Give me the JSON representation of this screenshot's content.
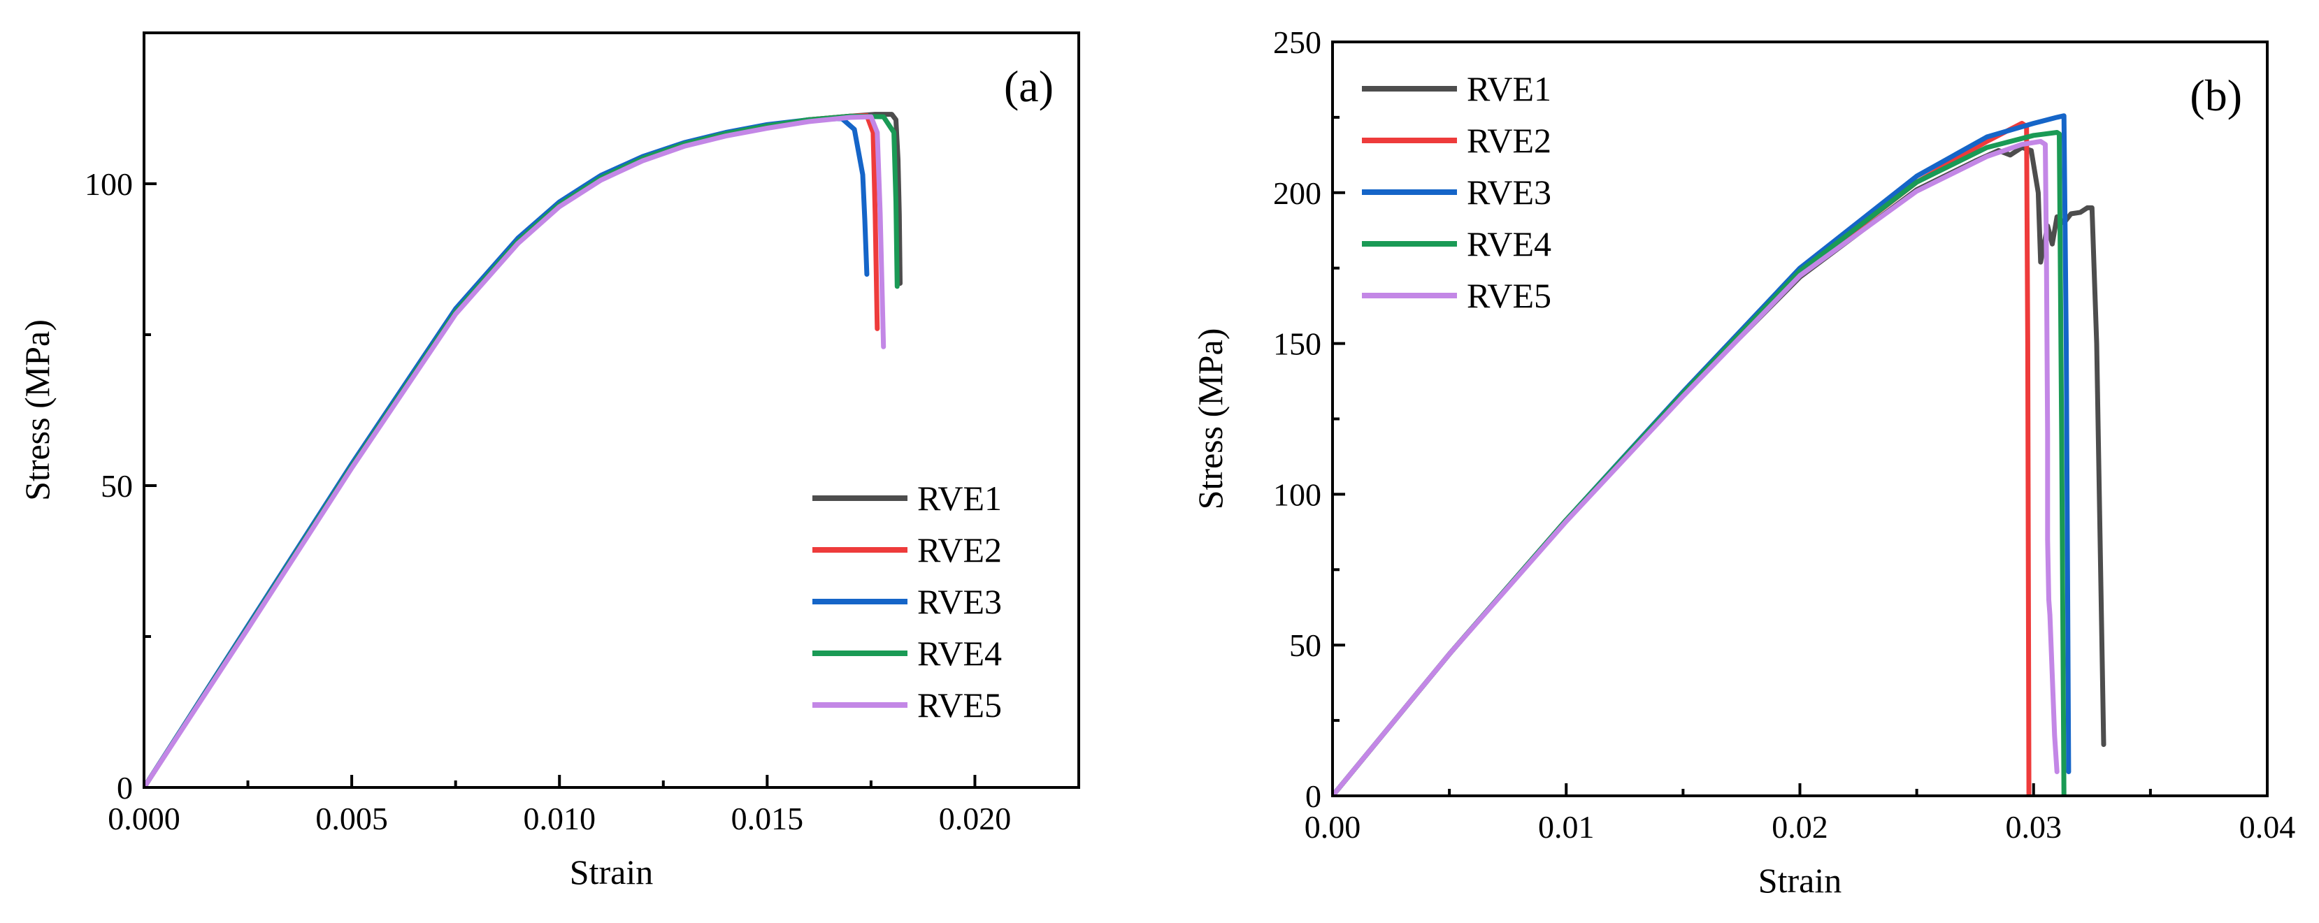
{
  "chart_data": [
    {
      "type": "line",
      "panel_label": "(a)",
      "xlabel": "Strain",
      "ylabel": "Stress (MPa)",
      "xlim": [
        0,
        0.0225
      ],
      "ylim": [
        0,
        125
      ],
      "xticks": [
        0,
        0.005,
        0.01,
        0.015,
        0.02
      ],
      "xtick_labels": [
        "0.000",
        "0.005",
        "0.010",
        "0.015",
        "0.020"
      ],
      "yticks": [
        0,
        50,
        100
      ],
      "ytick_labels": [
        "0",
        "50",
        "100"
      ],
      "legend_position": "bottom-right",
      "series": [
        {
          "name": "RVE1",
          "color": "#4d4d4d",
          "points": [
            [
              0,
              0
            ],
            [
              0.0025,
              26.5
            ],
            [
              0.005,
              53.2
            ],
            [
              0.0075,
              78.8
            ],
            [
              0.009,
              90.5
            ],
            [
              0.01,
              96.6
            ],
            [
              0.011,
              101.0
            ],
            [
              0.012,
              104.2
            ],
            [
              0.013,
              106.6
            ],
            [
              0.014,
              108.3
            ],
            [
              0.015,
              109.6
            ],
            [
              0.016,
              110.6
            ],
            [
              0.017,
              111.2
            ],
            [
              0.0176,
              111.5
            ],
            [
              0.018,
              111.5
            ],
            [
              0.0181,
              110.6
            ],
            [
              0.01815,
              104.0
            ],
            [
              0.01818,
              95.0
            ],
            [
              0.0182,
              83.5
            ]
          ]
        },
        {
          "name": "RVE2",
          "color": "#ee3b3b",
          "points": [
            [
              0,
              0
            ],
            [
              0.0025,
              26.5
            ],
            [
              0.005,
              53.2
            ],
            [
              0.0075,
              78.8
            ],
            [
              0.009,
              90.5
            ],
            [
              0.01,
              96.6
            ],
            [
              0.011,
              101.0
            ],
            [
              0.012,
              104.2
            ],
            [
              0.013,
              106.6
            ],
            [
              0.014,
              108.3
            ],
            [
              0.015,
              109.6
            ],
            [
              0.016,
              110.6
            ],
            [
              0.017,
              111.2
            ],
            [
              0.0174,
              111.3
            ],
            [
              0.01755,
              108.5
            ],
            [
              0.0176,
              95.0
            ],
            [
              0.01765,
              76.0
            ]
          ]
        },
        {
          "name": "RVE3",
          "color": "#1565c8",
          "points": [
            [
              0,
              0
            ],
            [
              0.0025,
              26.8
            ],
            [
              0.005,
              53.6
            ],
            [
              0.0075,
              79.3
            ],
            [
              0.009,
              91.0
            ],
            [
              0.01,
              97.0
            ],
            [
              0.011,
              101.4
            ],
            [
              0.012,
              104.5
            ],
            [
              0.013,
              106.8
            ],
            [
              0.014,
              108.5
            ],
            [
              0.015,
              109.8
            ],
            [
              0.016,
              110.6
            ],
            [
              0.0168,
              110.8
            ],
            [
              0.0171,
              109.0
            ],
            [
              0.0173,
              101.5
            ],
            [
              0.01735,
              94.0
            ],
            [
              0.0174,
              85.0
            ]
          ]
        },
        {
          "name": "RVE4",
          "color": "#1a9a55",
          "points": [
            [
              0,
              0
            ],
            [
              0.0025,
              26.5
            ],
            [
              0.005,
              53.2
            ],
            [
              0.0075,
              78.8
            ],
            [
              0.009,
              90.5
            ],
            [
              0.01,
              96.6
            ],
            [
              0.011,
              101.0
            ],
            [
              0.012,
              104.2
            ],
            [
              0.013,
              106.6
            ],
            [
              0.014,
              108.3
            ],
            [
              0.015,
              109.6
            ],
            [
              0.016,
              110.6
            ],
            [
              0.017,
              111.2
            ],
            [
              0.0178,
              111.1
            ],
            [
              0.01805,
              108.5
            ],
            [
              0.0181,
              97.0
            ],
            [
              0.01813,
              83.0
            ]
          ]
        },
        {
          "name": "RVE5",
          "color": "#c387e6",
          "points": [
            [
              0,
              0
            ],
            [
              0.0025,
              26.3
            ],
            [
              0.005,
              52.9
            ],
            [
              0.0075,
              78.4
            ],
            [
              0.009,
              90.1
            ],
            [
              0.01,
              96.2
            ],
            [
              0.011,
              100.6
            ],
            [
              0.012,
              103.8
            ],
            [
              0.013,
              106.2
            ],
            [
              0.014,
              107.9
            ],
            [
              0.015,
              109.2
            ],
            [
              0.016,
              110.3
            ],
            [
              0.017,
              111.0
            ],
            [
              0.0175,
              111.1
            ],
            [
              0.01765,
              108.5
            ],
            [
              0.01772,
              95.0
            ],
            [
              0.0178,
              73.0
            ]
          ]
        }
      ]
    },
    {
      "type": "line",
      "panel_label": "(b)",
      "xlabel": "Strain",
      "ylabel": "Stress (MPa)",
      "xlim": [
        0,
        0.04
      ],
      "ylim": [
        0,
        250
      ],
      "xticks": [
        0,
        0.01,
        0.02,
        0.03,
        0.04
      ],
      "xtick_labels": [
        "0.00",
        "0.01",
        "0.02",
        "0.03",
        "0.04"
      ],
      "yticks": [
        0,
        50,
        100,
        150,
        200,
        250
      ],
      "ytick_labels": [
        "0",
        "50",
        "100",
        "150",
        "200",
        "250"
      ],
      "legend_position": "top-left",
      "series": [
        {
          "name": "RVE1",
          "color": "#4d4d4d",
          "points": [
            [
              0,
              0
            ],
            [
              0.005,
              47.0
            ],
            [
              0.01,
              91.5
            ],
            [
              0.015,
              133.0
            ],
            [
              0.02,
              172.0
            ],
            [
              0.025,
              201.0
            ],
            [
              0.0275,
              210.5
            ],
            [
              0.0285,
              214.0
            ],
            [
              0.029,
              212.5
            ],
            [
              0.0295,
              215.0
            ],
            [
              0.0299,
              214.0
            ],
            [
              0.0302,
              200.0
            ],
            [
              0.0303,
              177.0
            ],
            [
              0.0306,
              189.0
            ],
            [
              0.0308,
              183.0
            ],
            [
              0.031,
              192.0
            ],
            [
              0.0313,
              190.0
            ],
            [
              0.0316,
              193.0
            ],
            [
              0.032,
              193.5
            ],
            [
              0.0323,
              195.0
            ],
            [
              0.0325,
              195.0
            ],
            [
              0.0327,
              150.0
            ],
            [
              0.033,
              17.0
            ]
          ]
        },
        {
          "name": "RVE2",
          "color": "#ee3b3b",
          "points": [
            [
              0,
              0
            ],
            [
              0.005,
              47.0
            ],
            [
              0.01,
              91.5
            ],
            [
              0.015,
              133.5
            ],
            [
              0.02,
              173.5
            ],
            [
              0.025,
              203.5
            ],
            [
              0.028,
              217.0
            ],
            [
              0.0295,
              223.0
            ],
            [
              0.0297,
              222.0
            ],
            [
              0.02975,
              150.0
            ],
            [
              0.0298,
              0.0
            ]
          ]
        },
        {
          "name": "RVE3",
          "color": "#1565c8",
          "points": [
            [
              0,
              0
            ],
            [
              0.005,
              47.0
            ],
            [
              0.01,
              91.5
            ],
            [
              0.015,
              134.0
            ],
            [
              0.02,
              175.0
            ],
            [
              0.025,
              205.5
            ],
            [
              0.028,
              218.5
            ],
            [
              0.03,
              223.0
            ],
            [
              0.031,
              225.0
            ],
            [
              0.0313,
              225.5
            ],
            [
              0.0314,
              150.0
            ],
            [
              0.0315,
              8.0
            ]
          ]
        },
        {
          "name": "RVE4",
          "color": "#1a9a55",
          "points": [
            [
              0,
              0
            ],
            [
              0.005,
              47.0
            ],
            [
              0.01,
              91.5
            ],
            [
              0.015,
              133.5
            ],
            [
              0.02,
              174.0
            ],
            [
              0.025,
              203.5
            ],
            [
              0.028,
              215.0
            ],
            [
              0.03,
              219.0
            ],
            [
              0.031,
              220.0
            ],
            [
              0.0311,
              219.5
            ],
            [
              0.0312,
              120.0
            ],
            [
              0.0313,
              0.0
            ]
          ]
        },
        {
          "name": "RVE5",
          "color": "#c387e6",
          "points": [
            [
              0,
              0
            ],
            [
              0.005,
              47.0
            ],
            [
              0.01,
              91.0
            ],
            [
              0.015,
              132.5
            ],
            [
              0.02,
              172.5
            ],
            [
              0.025,
              200.5
            ],
            [
              0.028,
              212.0
            ],
            [
              0.0295,
              216.0
            ],
            [
              0.0303,
              217.0
            ],
            [
              0.0305,
              216.0
            ],
            [
              0.03055,
              180.0
            ],
            [
              0.0306,
              120.0
            ],
            [
              0.0306,
              85.0
            ],
            [
              0.03065,
              65.0
            ],
            [
              0.0307,
              60.0
            ],
            [
              0.0309,
              20.0
            ],
            [
              0.031,
              8.0
            ]
          ]
        }
      ]
    }
  ]
}
